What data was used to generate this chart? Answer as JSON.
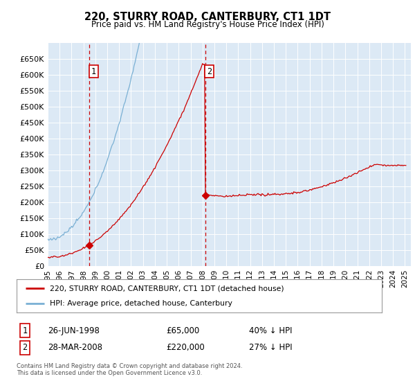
{
  "title": "220, STURRY ROAD, CANTERBURY, CT1 1DT",
  "subtitle": "Price paid vs. HM Land Registry's House Price Index (HPI)",
  "background_color": "#ffffff",
  "plot_bg_color": "#dce9f5",
  "grid_color": "#ffffff",
  "hpi_color": "#7ab0d4",
  "price_color": "#cc0000",
  "vline_color": "#cc0000",
  "annotation_box_color": "#cc0000",
  "sale1_date_num": 1998.49,
  "sale1_price": 65000,
  "sale1_label": "1",
  "sale2_date_num": 2008.24,
  "sale2_price": 220000,
  "sale2_label": "2",
  "legend_line1": "220, STURRY ROAD, CANTERBURY, CT1 1DT (detached house)",
  "legend_line2": "HPI: Average price, detached house, Canterbury",
  "table_row1": [
    "1",
    "26-JUN-1998",
    "£65,000",
    "40% ↓ HPI"
  ],
  "table_row2": [
    "2",
    "28-MAR-2008",
    "£220,000",
    "27% ↓ HPI"
  ],
  "footnote": "Contains HM Land Registry data © Crown copyright and database right 2024.\nThis data is licensed under the Open Government Licence v3.0.",
  "xmin": 1995.0,
  "xmax": 2025.5,
  "ylim": [
    0,
    700000
  ],
  "yticks": [
    0,
    50000,
    100000,
    150000,
    200000,
    250000,
    300000,
    350000,
    400000,
    450000,
    500000,
    550000,
    600000,
    650000
  ]
}
